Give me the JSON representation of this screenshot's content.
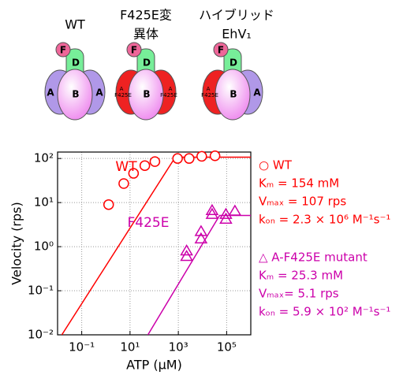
{
  "diagrams": [
    {
      "title": [
        "WT"
      ],
      "F": "F",
      "D": "D",
      "A_left": "A",
      "B": "B",
      "A_right": "A"
    },
    {
      "title": [
        "F425E変",
        "異体"
      ],
      "F": "F",
      "D": "D",
      "A_left": "A",
      "mut_left": "F425E",
      "B": "B",
      "A_right": "A",
      "mut_right": "F425E"
    },
    {
      "title": [
        "ハイブリッド",
        "EhV₁"
      ],
      "F": "F",
      "D": "D",
      "A_left": "A",
      "mut_left": "F425E",
      "B": "B",
      "A_right": "A"
    }
  ],
  "chart_data": {
    "type": "scatter",
    "xlabel": "ATP (μM)",
    "ylabel": "Velocity (rps)",
    "log_x": true,
    "log_y": true,
    "grid": true,
    "xlim": [
      0.01,
      1000000
    ],
    "ylim": [
      0.01,
      140
    ],
    "xticks": [
      {
        "value": 0.1,
        "label": "10⁻¹"
      },
      {
        "value": 10,
        "label": "10¹"
      },
      {
        "value": 1000,
        "label": "10³"
      },
      {
        "value": 100000,
        "label": "10⁵"
      }
    ],
    "yticks": [
      {
        "value": 0.01,
        "label": "10⁻²"
      },
      {
        "value": 0.1,
        "label": "10⁻¹"
      },
      {
        "value": 1,
        "label": "10⁰"
      },
      {
        "value": 10,
        "label": "10¹"
      },
      {
        "value": 100,
        "label": "10²"
      }
    ],
    "series": [
      {
        "marker": "line",
        "color": "#ff0000",
        "x": [
          0.015,
          750,
          1000000
        ],
        "values": [
          0.01,
          107,
          107
        ]
      },
      {
        "marker": "circle",
        "color": "#ff0000",
        "x": [
          1.3,
          5.5,
          14,
          41,
          107,
          930,
          2800,
          9300,
          33000
        ],
        "values": [
          9,
          27,
          46,
          69,
          85,
          100,
          100,
          112,
          115
        ]
      },
      {
        "marker": "line",
        "color": "#cc00aa",
        "x": [
          55,
          51000,
          1000000
        ],
        "values": [
          0.01,
          5.1,
          5.1
        ]
      },
      {
        "marker": "triangle",
        "color": "#cc00aa",
        "x": [
          2200,
          2200,
          8700,
          8700,
          25000,
          25000,
          93000,
          93000,
          220000
        ],
        "values": [
          0.6,
          0.8,
          1.5,
          2.2,
          6.6,
          5.4,
          4.2,
          5.4,
          6.4
        ]
      }
    ],
    "annotations": [
      {
        "text": "WT",
        "color": "#ff0000"
      },
      {
        "text": "F425E",
        "color": "#cc00aa"
      }
    ],
    "notes": [
      {
        "color": "#ff0000",
        "lines": [
          "○ WT",
          "Kₘ = 154 mM",
          "Vₘₐₓ = 107 rps",
          "kₒₙ = 2.3 × 10⁶ M⁻¹s⁻¹"
        ]
      },
      {
        "color": "#cc00aa",
        "lines": [
          "△ A-F425E mutant",
          "Kₘ = 25.3 mM",
          "Vₘₐₓ= 5.1 rps",
          "kₒₙ = 5.9 × 10² M⁻¹s⁻¹"
        ]
      }
    ]
  }
}
